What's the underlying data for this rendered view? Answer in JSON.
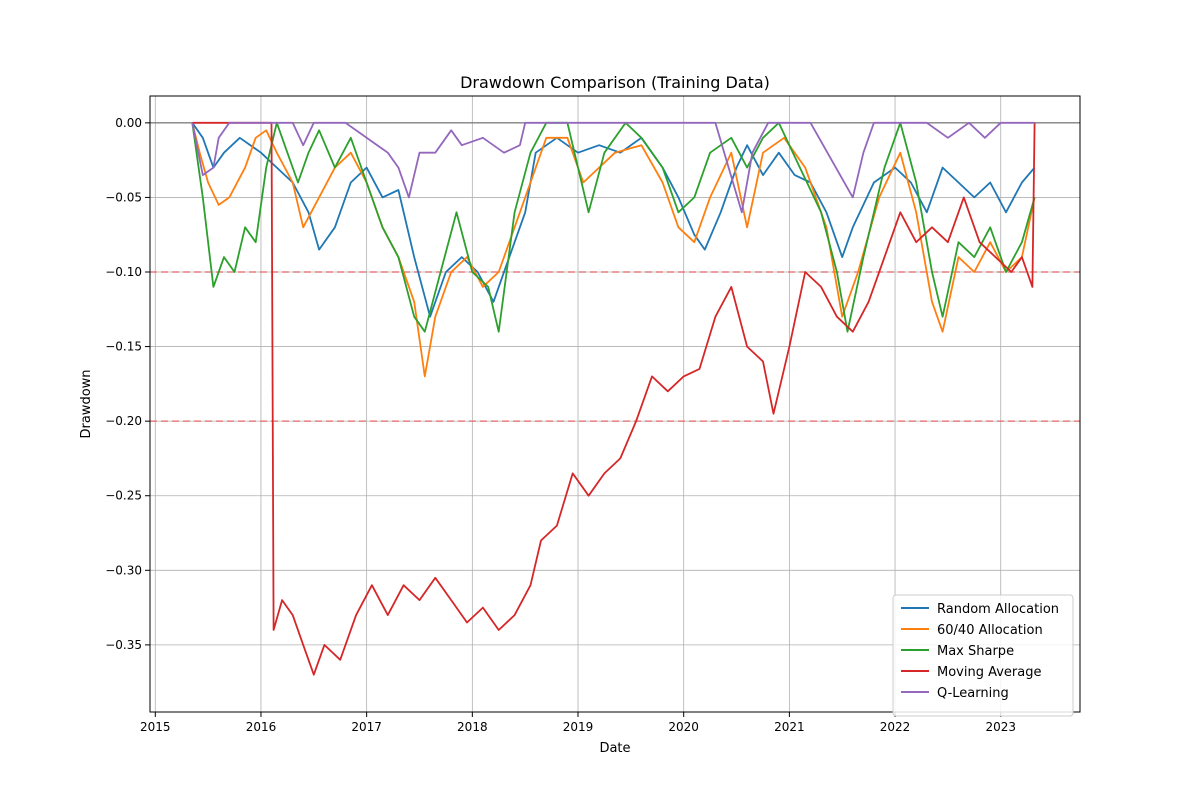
{
  "chart_data": {
    "type": "line",
    "title": "Drawdown Comparison (Training Data)",
    "xlabel": "Date",
    "ylabel": "Drawdown",
    "xlim": [
      2014.95,
      2023.75
    ],
    "ylim": [
      -0.395,
      0.018
    ],
    "x_ticks": [
      2015,
      2016,
      2017,
      2018,
      2019,
      2020,
      2021,
      2022,
      2023
    ],
    "x_tick_labels": [
      "2015",
      "2016",
      "2017",
      "2018",
      "2019",
      "2020",
      "2021",
      "2022",
      "2023"
    ],
    "y_ticks": [
      0.0,
      -0.05,
      -0.1,
      -0.15,
      -0.2,
      -0.25,
      -0.3,
      -0.35
    ],
    "y_tick_labels": [
      "0.00",
      "−0.05",
      "−0.10",
      "−0.15",
      "−0.20",
      "−0.25",
      "−0.30",
      "−0.35"
    ],
    "grid": true,
    "legend_position": "lower-right",
    "reference_lines": [
      {
        "y": 0.0,
        "color": "#808080",
        "style": "solid"
      },
      {
        "y": -0.1,
        "color": "#e06666",
        "style": "dashed"
      },
      {
        "y": -0.2,
        "color": "#e06666",
        "style": "dashed"
      }
    ],
    "series": [
      {
        "name": "Random Allocation",
        "color": "#1f77b4",
        "points": [
          [
            2015.35,
            0
          ],
          [
            2015.45,
            -0.01
          ],
          [
            2015.55,
            -0.03
          ],
          [
            2015.65,
            -0.02
          ],
          [
            2015.8,
            -0.01
          ],
          [
            2016.0,
            -0.02
          ],
          [
            2016.15,
            -0.03
          ],
          [
            2016.3,
            -0.04
          ],
          [
            2016.45,
            -0.06
          ],
          [
            2016.55,
            -0.085
          ],
          [
            2016.7,
            -0.07
          ],
          [
            2016.85,
            -0.04
          ],
          [
            2017.0,
            -0.03
          ],
          [
            2017.15,
            -0.05
          ],
          [
            2017.3,
            -0.045
          ],
          [
            2017.45,
            -0.09
          ],
          [
            2017.6,
            -0.13
          ],
          [
            2017.75,
            -0.1
          ],
          [
            2017.9,
            -0.09
          ],
          [
            2018.05,
            -0.1
          ],
          [
            2018.2,
            -0.12
          ],
          [
            2018.35,
            -0.09
          ],
          [
            2018.5,
            -0.06
          ],
          [
            2018.6,
            -0.02
          ],
          [
            2018.8,
            -0.01
          ],
          [
            2019.0,
            -0.02
          ],
          [
            2019.2,
            -0.015
          ],
          [
            2019.4,
            -0.02
          ],
          [
            2019.6,
            -0.01
          ],
          [
            2019.8,
            -0.03
          ],
          [
            2019.95,
            -0.05
          ],
          [
            2020.1,
            -0.075
          ],
          [
            2020.2,
            -0.085
          ],
          [
            2020.35,
            -0.06
          ],
          [
            2020.5,
            -0.03
          ],
          [
            2020.6,
            -0.015
          ],
          [
            2020.75,
            -0.035
          ],
          [
            2020.9,
            -0.02
          ],
          [
            2021.05,
            -0.035
          ],
          [
            2021.2,
            -0.04
          ],
          [
            2021.35,
            -0.06
          ],
          [
            2021.5,
            -0.09
          ],
          [
            2021.6,
            -0.07
          ],
          [
            2021.8,
            -0.04
          ],
          [
            2022.0,
            -0.03
          ],
          [
            2022.15,
            -0.04
          ],
          [
            2022.3,
            -0.06
          ],
          [
            2022.45,
            -0.03
          ],
          [
            2022.6,
            -0.04
          ],
          [
            2022.75,
            -0.05
          ],
          [
            2022.9,
            -0.04
          ],
          [
            2023.05,
            -0.06
          ],
          [
            2023.2,
            -0.04
          ],
          [
            2023.32,
            -0.03
          ]
        ]
      },
      {
        "name": "60/40 Allocation",
        "color": "#ff7f0e",
        "points": [
          [
            2015.35,
            0
          ],
          [
            2015.42,
            -0.02
          ],
          [
            2015.5,
            -0.04
          ],
          [
            2015.6,
            -0.055
          ],
          [
            2015.7,
            -0.05
          ],
          [
            2015.85,
            -0.03
          ],
          [
            2015.95,
            -0.01
          ],
          [
            2016.05,
            -0.005
          ],
          [
            2016.15,
            -0.02
          ],
          [
            2016.3,
            -0.04
          ],
          [
            2016.4,
            -0.07
          ],
          [
            2016.55,
            -0.05
          ],
          [
            2016.7,
            -0.03
          ],
          [
            2016.85,
            -0.02
          ],
          [
            2017.0,
            -0.04
          ],
          [
            2017.15,
            -0.07
          ],
          [
            2017.3,
            -0.09
          ],
          [
            2017.45,
            -0.12
          ],
          [
            2017.55,
            -0.17
          ],
          [
            2017.65,
            -0.13
          ],
          [
            2017.8,
            -0.1
          ],
          [
            2017.95,
            -0.09
          ],
          [
            2018.1,
            -0.11
          ],
          [
            2018.25,
            -0.1
          ],
          [
            2018.4,
            -0.07
          ],
          [
            2018.55,
            -0.04
          ],
          [
            2018.7,
            -0.01
          ],
          [
            2018.9,
            -0.01
          ],
          [
            2019.05,
            -0.04
          ],
          [
            2019.2,
            -0.03
          ],
          [
            2019.35,
            -0.02
          ],
          [
            2019.6,
            -0.015
          ],
          [
            2019.8,
            -0.04
          ],
          [
            2019.95,
            -0.07
          ],
          [
            2020.1,
            -0.08
          ],
          [
            2020.25,
            -0.05
          ],
          [
            2020.45,
            -0.02
          ],
          [
            2020.6,
            -0.07
          ],
          [
            2020.75,
            -0.02
          ],
          [
            2020.95,
            -0.01
          ],
          [
            2021.15,
            -0.03
          ],
          [
            2021.35,
            -0.07
          ],
          [
            2021.5,
            -0.13
          ],
          [
            2021.65,
            -0.1
          ],
          [
            2021.85,
            -0.05
          ],
          [
            2022.05,
            -0.02
          ],
          [
            2022.2,
            -0.06
          ],
          [
            2022.35,
            -0.12
          ],
          [
            2022.45,
            -0.14
          ],
          [
            2022.6,
            -0.09
          ],
          [
            2022.75,
            -0.1
          ],
          [
            2022.9,
            -0.08
          ],
          [
            2023.05,
            -0.1
          ],
          [
            2023.2,
            -0.09
          ],
          [
            2023.32,
            -0.05
          ]
        ]
      },
      {
        "name": "Max Sharpe",
        "color": "#2ca02c",
        "points": [
          [
            2015.35,
            0
          ],
          [
            2015.45,
            -0.05
          ],
          [
            2015.55,
            -0.11
          ],
          [
            2015.65,
            -0.09
          ],
          [
            2015.75,
            -0.1
          ],
          [
            2015.85,
            -0.07
          ],
          [
            2015.95,
            -0.08
          ],
          [
            2016.05,
            -0.03
          ],
          [
            2016.15,
            0
          ],
          [
            2016.25,
            -0.02
          ],
          [
            2016.35,
            -0.04
          ],
          [
            2016.45,
            -0.02
          ],
          [
            2016.55,
            -0.005
          ],
          [
            2016.7,
            -0.03
          ],
          [
            2016.85,
            -0.01
          ],
          [
            2017.0,
            -0.04
          ],
          [
            2017.15,
            -0.07
          ],
          [
            2017.3,
            -0.09
          ],
          [
            2017.45,
            -0.13
          ],
          [
            2017.55,
            -0.14
          ],
          [
            2017.7,
            -0.1
          ],
          [
            2017.85,
            -0.06
          ],
          [
            2018.0,
            -0.1
          ],
          [
            2018.15,
            -0.11
          ],
          [
            2018.25,
            -0.14
          ],
          [
            2018.4,
            -0.06
          ],
          [
            2018.55,
            -0.02
          ],
          [
            2018.7,
            0
          ],
          [
            2018.9,
            0
          ],
          [
            2019.1,
            -0.06
          ],
          [
            2019.25,
            -0.02
          ],
          [
            2019.45,
            0
          ],
          [
            2019.6,
            -0.01
          ],
          [
            2019.8,
            -0.03
          ],
          [
            2019.95,
            -0.06
          ],
          [
            2020.1,
            -0.05
          ],
          [
            2020.25,
            -0.02
          ],
          [
            2020.45,
            -0.01
          ],
          [
            2020.6,
            -0.03
          ],
          [
            2020.75,
            -0.01
          ],
          [
            2020.9,
            0
          ],
          [
            2021.1,
            -0.03
          ],
          [
            2021.3,
            -0.06
          ],
          [
            2021.45,
            -0.1
          ],
          [
            2021.55,
            -0.14
          ],
          [
            2021.7,
            -0.09
          ],
          [
            2021.9,
            -0.03
          ],
          [
            2022.05,
            0
          ],
          [
            2022.2,
            -0.04
          ],
          [
            2022.35,
            -0.1
          ],
          [
            2022.45,
            -0.13
          ],
          [
            2022.6,
            -0.08
          ],
          [
            2022.75,
            -0.09
          ],
          [
            2022.9,
            -0.07
          ],
          [
            2023.05,
            -0.1
          ],
          [
            2023.2,
            -0.08
          ],
          [
            2023.32,
            -0.05
          ]
        ]
      },
      {
        "name": "Moving Average",
        "color": "#d62728",
        "points": [
          [
            2015.35,
            0
          ],
          [
            2016.1,
            0
          ],
          [
            2016.12,
            -0.34
          ],
          [
            2016.2,
            -0.32
          ],
          [
            2016.3,
            -0.33
          ],
          [
            2016.4,
            -0.35
          ],
          [
            2016.5,
            -0.37
          ],
          [
            2016.6,
            -0.35
          ],
          [
            2016.75,
            -0.36
          ],
          [
            2016.9,
            -0.33
          ],
          [
            2017.05,
            -0.31
          ],
          [
            2017.2,
            -0.33
          ],
          [
            2017.35,
            -0.31
          ],
          [
            2017.5,
            -0.32
          ],
          [
            2017.65,
            -0.305
          ],
          [
            2017.8,
            -0.32
          ],
          [
            2017.95,
            -0.335
          ],
          [
            2018.1,
            -0.325
          ],
          [
            2018.25,
            -0.34
          ],
          [
            2018.4,
            -0.33
          ],
          [
            2018.55,
            -0.31
          ],
          [
            2018.65,
            -0.28
          ],
          [
            2018.8,
            -0.27
          ],
          [
            2018.95,
            -0.235
          ],
          [
            2019.1,
            -0.25
          ],
          [
            2019.25,
            -0.235
          ],
          [
            2019.4,
            -0.225
          ],
          [
            2019.55,
            -0.2
          ],
          [
            2019.7,
            -0.17
          ],
          [
            2019.85,
            -0.18
          ],
          [
            2020.0,
            -0.17
          ],
          [
            2020.15,
            -0.165
          ],
          [
            2020.3,
            -0.13
          ],
          [
            2020.45,
            -0.11
          ],
          [
            2020.6,
            -0.15
          ],
          [
            2020.75,
            -0.16
          ],
          [
            2020.85,
            -0.195
          ],
          [
            2021.0,
            -0.15
          ],
          [
            2021.15,
            -0.1
          ],
          [
            2021.3,
            -0.11
          ],
          [
            2021.45,
            -0.13
          ],
          [
            2021.6,
            -0.14
          ],
          [
            2021.75,
            -0.12
          ],
          [
            2021.9,
            -0.09
          ],
          [
            2022.05,
            -0.06
          ],
          [
            2022.2,
            -0.08
          ],
          [
            2022.35,
            -0.07
          ],
          [
            2022.5,
            -0.08
          ],
          [
            2022.65,
            -0.05
          ],
          [
            2022.8,
            -0.08
          ],
          [
            2022.95,
            -0.09
          ],
          [
            2023.1,
            -0.1
          ],
          [
            2023.2,
            -0.09
          ],
          [
            2023.3,
            -0.11
          ],
          [
            2023.32,
            0
          ]
        ]
      },
      {
        "name": "Q-Learning",
        "color": "#9467bd",
        "points": [
          [
            2015.35,
            0
          ],
          [
            2015.45,
            -0.035
          ],
          [
            2015.55,
            -0.03
          ],
          [
            2015.6,
            -0.01
          ],
          [
            2015.7,
            0
          ],
          [
            2016.3,
            0
          ],
          [
            2016.4,
            -0.015
          ],
          [
            2016.5,
            0
          ],
          [
            2016.8,
            0
          ],
          [
            2017.2,
            -0.02
          ],
          [
            2017.3,
            -0.03
          ],
          [
            2017.4,
            -0.05
          ],
          [
            2017.5,
            -0.02
          ],
          [
            2017.65,
            -0.02
          ],
          [
            2017.8,
            -0.005
          ],
          [
            2017.9,
            -0.015
          ],
          [
            2018.1,
            -0.01
          ],
          [
            2018.3,
            -0.02
          ],
          [
            2018.45,
            -0.015
          ],
          [
            2018.5,
            0
          ],
          [
            2019.5,
            0
          ],
          [
            2020.0,
            0
          ],
          [
            2020.3,
            0
          ],
          [
            2020.55,
            -0.06
          ],
          [
            2020.65,
            -0.02
          ],
          [
            2020.8,
            0
          ],
          [
            2021.2,
            0
          ],
          [
            2021.6,
            -0.05
          ],
          [
            2021.7,
            -0.02
          ],
          [
            2021.8,
            0
          ],
          [
            2022.3,
            0
          ],
          [
            2022.5,
            -0.01
          ],
          [
            2022.7,
            0
          ],
          [
            2022.85,
            -0.01
          ],
          [
            2023.0,
            0
          ],
          [
            2023.32,
            0
          ]
        ]
      }
    ]
  }
}
